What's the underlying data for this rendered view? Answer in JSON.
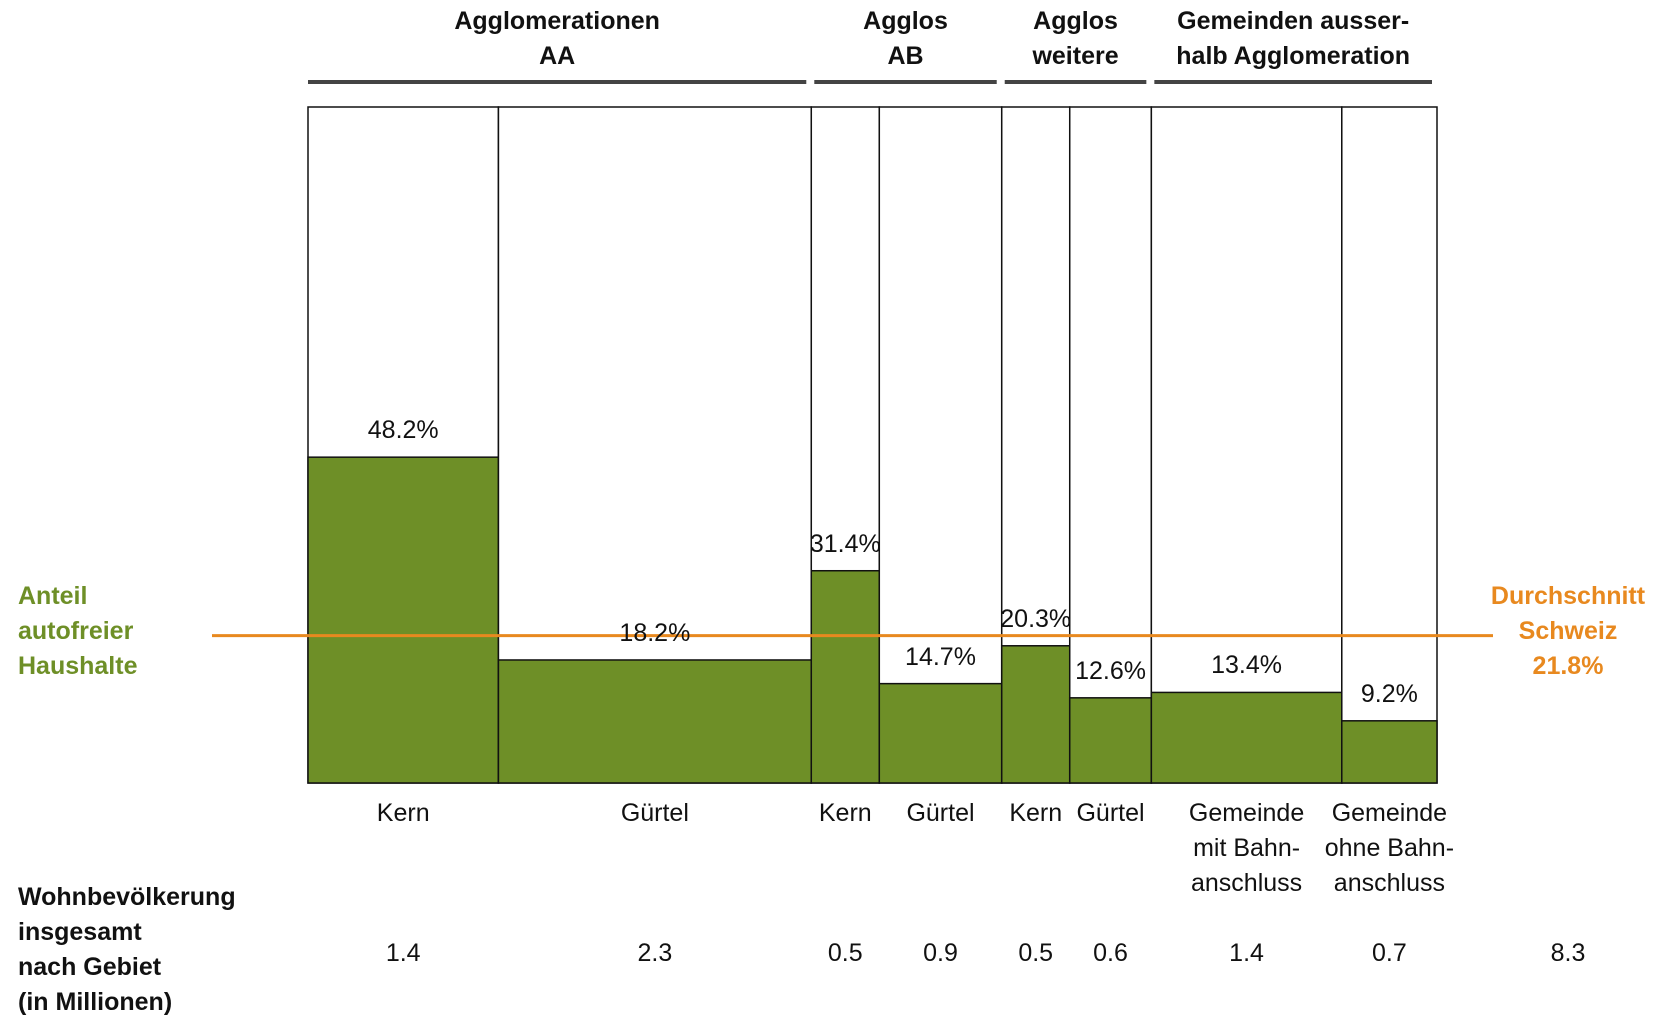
{
  "chart_data": {
    "type": "mekko",
    "categories": [
      "Kern",
      "Gürtel",
      "Kern",
      "Gürtel",
      "Kern",
      "Gürtel",
      "Gemeinde\nmit Bahn-\nanschluss",
      "Gemeinde\nohne Bahn-\nanschluss"
    ],
    "groups": [
      {
        "label": "Agglomerationen\nAA",
        "span": 2
      },
      {
        "label": "Agglos\nAB",
        "span": 2
      },
      {
        "label": "Agglos\nweitere",
        "span": 2
      },
      {
        "label": "Gemeinden ausser-\nhalb Agglomeration",
        "span": 2
      }
    ],
    "series": [
      {
        "name": "Anteil\nautofreier\nHaushalte",
        "color": "#6e8f27",
        "values": [
          48.2,
          18.2,
          31.4,
          14.7,
          20.3,
          12.6,
          13.4,
          9.2
        ],
        "value_labels": [
          "48.2%",
          "18.2%",
          "31.4%",
          "14.7%",
          "20.3%",
          "12.6%",
          "13.4%",
          "9.2%"
        ]
      }
    ],
    "widths_label": "Wohnbevölkerung\ninsgesamt\nnach Gebiet\n(in Millionen)",
    "widths": [
      1.4,
      2.3,
      0.5,
      0.9,
      0.5,
      0.6,
      1.4,
      0.7
    ],
    "total": 8.3,
    "average": {
      "label": "Durchschnitt\nSchweiz",
      "value": 21.8,
      "value_label": "21.8%",
      "color": "#e8891f"
    },
    "ylim": [
      0,
      100
    ]
  }
}
